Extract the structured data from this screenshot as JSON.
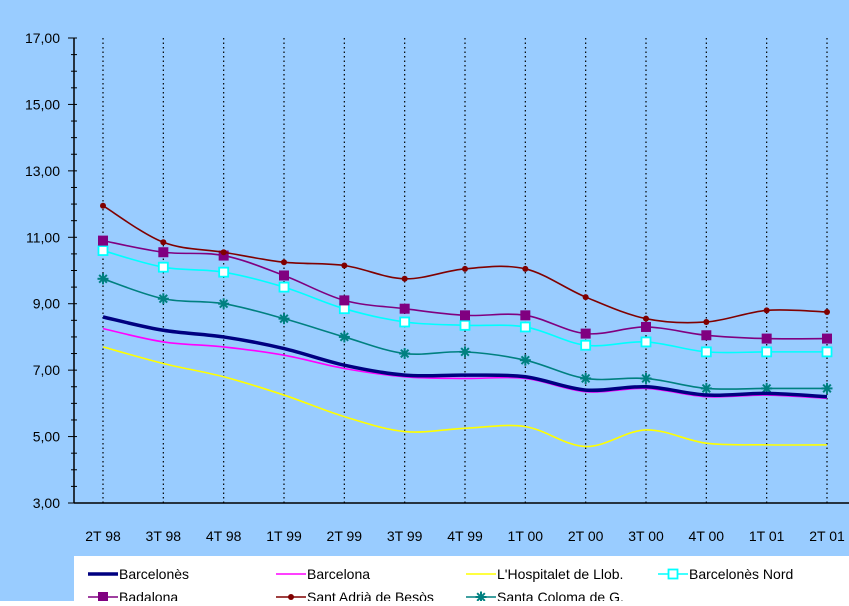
{
  "chart_data": {
    "type": "line",
    "title": "",
    "xlabel": "",
    "ylabel": "",
    "ylim": [
      3,
      17
    ],
    "yticks": [
      "3,00",
      "5,00",
      "7,00",
      "9,00",
      "11,00",
      "13,00",
      "15,00",
      "17,00"
    ],
    "categories": [
      "2T 98",
      "3T 98",
      "4T 98",
      "1T 99",
      "2T 99",
      "3T 99",
      "4T 99",
      "1T 00",
      "2T 00",
      "3T 00",
      "4T 00",
      "1T 01",
      "2T 01"
    ],
    "grid": "vertical dotted lines at each category",
    "legend_position": "bottom",
    "background_color": "#99ccff",
    "series": [
      {
        "name": "Barcelonès",
        "color": "#000080",
        "marker": "none",
        "width": 3.5,
        "values": [
          8.6,
          8.2,
          8.0,
          7.65,
          7.15,
          6.85,
          6.85,
          6.8,
          6.4,
          6.5,
          6.25,
          6.3,
          6.2
        ]
      },
      {
        "name": "Barcelona",
        "color": "#ff00ff",
        "marker": "none",
        "width": 1.6,
        "values": [
          8.25,
          7.85,
          7.7,
          7.45,
          7.05,
          6.8,
          6.75,
          6.75,
          6.35,
          6.45,
          6.2,
          6.25,
          6.15
        ]
      },
      {
        "name": "L'Hospitalet de Llob.",
        "color": "#ffff00",
        "marker": "none",
        "width": 1.6,
        "values": [
          7.7,
          7.2,
          6.8,
          6.25,
          5.6,
          5.15,
          5.25,
          5.3,
          4.7,
          5.2,
          4.8,
          4.75,
          4.75
        ]
      },
      {
        "name": "Barcelonès Nord",
        "color": "#00ffff",
        "marker": "square-open",
        "width": 1.6,
        "values": [
          10.6,
          10.1,
          9.95,
          9.5,
          8.85,
          8.45,
          8.35,
          8.3,
          7.75,
          7.85,
          7.55,
          7.55,
          7.55
        ]
      },
      {
        "name": "Badalona",
        "color": "#800080",
        "marker": "square",
        "width": 1.6,
        "values": [
          10.9,
          10.55,
          10.45,
          9.85,
          9.1,
          8.85,
          8.65,
          8.65,
          8.1,
          8.3,
          8.05,
          7.95,
          7.95
        ]
      },
      {
        "name": "Sant Adrià de Besòs",
        "color": "#800000",
        "marker": "circle",
        "width": 1.6,
        "values": [
          11.95,
          10.85,
          10.55,
          10.25,
          10.15,
          9.75,
          10.05,
          10.05,
          9.2,
          8.55,
          8.45,
          8.8,
          8.75
        ]
      },
      {
        "name": "Santa Coloma de G.",
        "color": "#008080",
        "marker": "star",
        "width": 1.6,
        "values": [
          9.75,
          9.15,
          9.0,
          8.55,
          8.0,
          7.5,
          7.55,
          7.3,
          6.75,
          6.75,
          6.45,
          6.45,
          6.45
        ]
      }
    ]
  }
}
